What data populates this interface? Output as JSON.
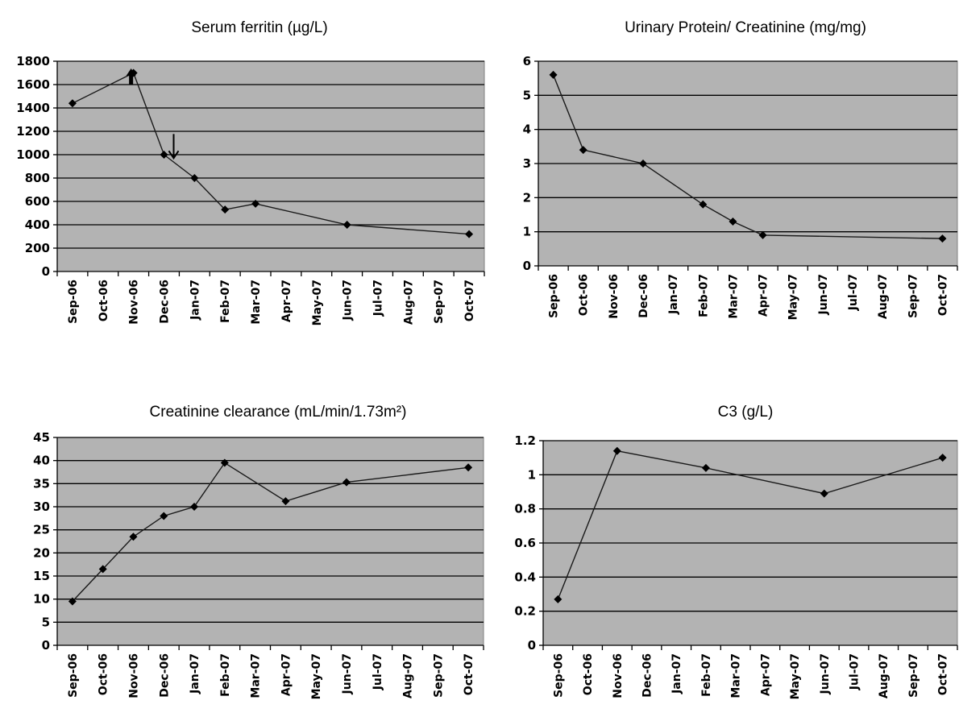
{
  "chart_data": [
    {
      "id": "ferritin",
      "type": "line",
      "title": "Serum ferritin (µg/L)",
      "xlabel": "",
      "ylabel": "",
      "categories": [
        "Sep-06",
        "Oct-06",
        "Nov-06",
        "Dec-06",
        "Jan-07",
        "Feb-07",
        "Mar-07",
        "Apr-07",
        "May-07",
        "Jun-07",
        "Jul-07",
        "Aug-07",
        "Sep-07",
        "Oct-07"
      ],
      "ylim": [
        0,
        1800
      ],
      "ystep": 200,
      "ytick_labels": [
        "0",
        "200",
        "400",
        "600",
        "800",
        "1000",
        "1200",
        "1400",
        "1600",
        "1800"
      ],
      "grid": true,
      "points": [
        {
          "x": "Sep-06",
          "y": 1440
        },
        {
          "x": "Nov-06",
          "y": 1700
        },
        {
          "x": "Dec-06",
          "y": 1000
        },
        {
          "x": "Jan-07",
          "y": 800
        },
        {
          "x": "Feb-07",
          "y": 530
        },
        {
          "x": "Mar-07",
          "y": 580
        },
        {
          "x": "Jun-07",
          "y": 400
        },
        {
          "x": "Oct-07",
          "y": 320
        }
      ],
      "annotations": [
        {
          "type": "arrow-up",
          "x": "Nov-06",
          "y": 1600
        },
        {
          "type": "arrow-down",
          "x": "Dec-06",
          "y": 970
        }
      ]
    },
    {
      "id": "upcr",
      "type": "line",
      "title": "Urinary Protein/ Creatinine (mg/mg)",
      "xlabel": "",
      "ylabel": "",
      "categories": [
        "Sep-06",
        "Oct-06",
        "Nov-06",
        "Dec-06",
        "Jan-07",
        "Feb-07",
        "Mar-07",
        "Apr-07",
        "May-07",
        "Jun-07",
        "Jul-07",
        "Aug-07",
        "Sep-07",
        "Oct-07"
      ],
      "ylim": [
        0,
        6
      ],
      "ystep": 1,
      "ytick_labels": [
        "0",
        "1",
        "2",
        "3",
        "4",
        "5",
        "6"
      ],
      "grid": true,
      "points": [
        {
          "x": "Sep-06",
          "y": 5.6
        },
        {
          "x": "Oct-06",
          "y": 3.4
        },
        {
          "x": "Dec-06",
          "y": 3.0
        },
        {
          "x": "Feb-07",
          "y": 1.8
        },
        {
          "x": "Mar-07",
          "y": 1.3
        },
        {
          "x": "Apr-07",
          "y": 0.9
        },
        {
          "x": "Oct-07",
          "y": 0.8
        }
      ],
      "annotations": []
    },
    {
      "id": "crcl",
      "type": "line",
      "title": "Creatinine clearance (mL/min/1.73m²)",
      "xlabel": "",
      "ylabel": "",
      "categories": [
        "Sep-06",
        "Oct-06",
        "Nov-06",
        "Dec-06",
        "Jan-07",
        "Feb-07",
        "Mar-07",
        "Apr-07",
        "May-07",
        "Jun-07",
        "Jul-07",
        "Aug-07",
        "Sep-07",
        "Oct-07"
      ],
      "ylim": [
        0,
        45
      ],
      "ystep": 5,
      "ytick_labels": [
        "0",
        "5",
        "10",
        "15",
        "20",
        "25",
        "30",
        "35",
        "40",
        "45"
      ],
      "grid": true,
      "points": [
        {
          "x": "Sep-06",
          "y": 9.5
        },
        {
          "x": "Oct-06",
          "y": 16.5
        },
        {
          "x": "Nov-06",
          "y": 23.5
        },
        {
          "x": "Dec-06",
          "y": 28
        },
        {
          "x": "Jan-07",
          "y": 30
        },
        {
          "x": "Feb-07",
          "y": 39.5
        },
        {
          "x": "Apr-07",
          "y": 31.2
        },
        {
          "x": "Jun-07",
          "y": 35.3
        },
        {
          "x": "Oct-07",
          "y": 38.5
        }
      ],
      "annotations": []
    },
    {
      "id": "c3",
      "type": "line",
      "title": "C3 (g/L)",
      "xlabel": "",
      "ylabel": "",
      "categories": [
        "Sep-06",
        "Oct-06",
        "Nov-06",
        "Dec-06",
        "Jan-07",
        "Feb-07",
        "Mar-07",
        "Apr-07",
        "May-07",
        "Jun-07",
        "Jul-07",
        "Aug-07",
        "Sep-07",
        "Oct-07"
      ],
      "ylim": [
        0,
        1.2
      ],
      "ystep": 0.2,
      "ytick_labels": [
        "0",
        "0.2",
        "0.4",
        "0.6",
        "0.8",
        "1",
        "1.2"
      ],
      "grid": true,
      "points": [
        {
          "x": "Sep-06",
          "y": 0.27
        },
        {
          "x": "Nov-06",
          "y": 1.14
        },
        {
          "x": "Feb-07",
          "y": 1.04
        },
        {
          "x": "Jun-07",
          "y": 0.89
        },
        {
          "x": "Oct-07",
          "y": 1.1
        }
      ],
      "annotations": []
    }
  ]
}
